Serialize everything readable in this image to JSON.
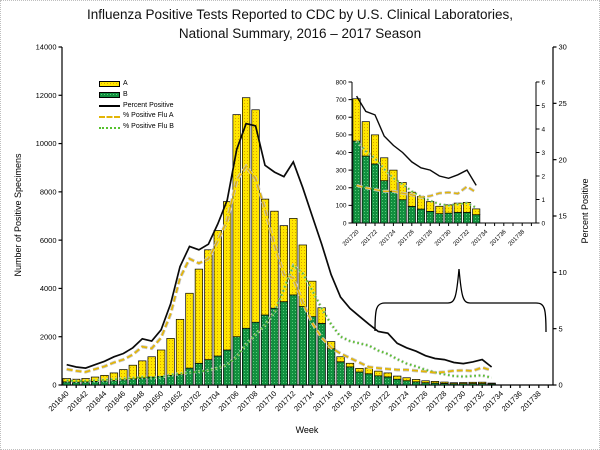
{
  "title": {
    "line1": "Influenza Positive Tests Reported to CDC by U.S. Clinical Laboratories,",
    "line2": "National Summary, 2016 – 2017 Season"
  },
  "chart_data": {
    "type": "bar",
    "subtype": "stacked bars with overlaid percent lines, plus zoom inset",
    "title": "Influenza Positive Tests Reported to CDC by U.S. Clinical Laboratories, National Summary, 2016 – 2017 Season",
    "xlabel": "Week",
    "ylabel_left": "Number of Positive Specimens",
    "ylabel_right": "Percent Positive",
    "axes": {
      "left_ticks": [
        0,
        2000,
        4000,
        6000,
        8000,
        10000,
        12000,
        14000
      ],
      "right_ticks": [
        0,
        5,
        10,
        15,
        20,
        25,
        30
      ],
      "x_tick_labels": [
        "201640",
        "201642",
        "201644",
        "201646",
        "201648",
        "201650",
        "201652",
        "201702",
        "201704",
        "201706",
        "201708",
        "201710",
        "201712",
        "201714",
        "201716",
        "201718",
        "201720",
        "201722",
        "201724",
        "201726",
        "201728",
        "201730",
        "201732",
        "201734",
        "201736",
        "201738"
      ],
      "x_axis_weeks_total": 52,
      "left_range": [
        0,
        14000
      ],
      "right_range": [
        0,
        30
      ]
    },
    "weeks": [
      "201640",
      "201641",
      "201642",
      "201643",
      "201644",
      "201645",
      "201646",
      "201647",
      "201648",
      "201649",
      "201650",
      "201651",
      "201652",
      "201701",
      "201702",
      "201703",
      "201704",
      "201705",
      "201706",
      "201707",
      "201708",
      "201709",
      "201710",
      "201711",
      "201712",
      "201713",
      "201714",
      "201715",
      "201716",
      "201717",
      "201718",
      "201719",
      "201720",
      "201721",
      "201722",
      "201723",
      "201724",
      "201725",
      "201726",
      "201727",
      "201728",
      "201729",
      "201730",
      "201731",
      "201732",
      "201733"
    ],
    "series": [
      {
        "name": "A",
        "type": "bar",
        "values": [
          140,
          120,
          140,
          180,
          235,
          315,
          425,
          565,
          705,
          840,
          1090,
          1535,
          2290,
          3100,
          3900,
          4550,
          5200,
          6150,
          9200,
          9550,
          8800,
          4800,
          4020,
          3150,
          3170,
          2550,
          1470,
          650,
          300,
          210,
          150,
          150,
          240,
          195,
          165,
          130,
          122,
          98,
          81,
          71,
          56,
          42,
          47,
          53,
          57,
          33
        ]
      },
      {
        "name": "B",
        "type": "bar",
        "values": [
          130,
          120,
          130,
          150,
          165,
          185,
          215,
          255,
          295,
          330,
          360,
          395,
          430,
          700,
          900,
          1050,
          1200,
          1450,
          2000,
          2350,
          2600,
          2900,
          3180,
          3450,
          3730,
          3250,
          2830,
          2550,
          1500,
          960,
          750,
          540,
          465,
          380,
          335,
          240,
          178,
          132,
          94,
          79,
          66,
          53,
          56,
          60,
          60,
          47
        ]
      },
      {
        "name": "Percent Positive",
        "type": "line",
        "axis": "right",
        "values": [
          1.8,
          1.6,
          1.5,
          1.8,
          2.1,
          2.5,
          2.8,
          3.3,
          4.1,
          3.9,
          4.9,
          7.2,
          10.5,
          12.3,
          12.0,
          12.5,
          14.3,
          16.4,
          20.9,
          23.2,
          23.0,
          19.5,
          18.9,
          18.5,
          19.8,
          17.5,
          15.0,
          12.5,
          9.8,
          7.8,
          6.8,
          6.1,
          5.4,
          4.75,
          4.6,
          3.7,
          3.3,
          3.0,
          2.6,
          2.35,
          2.25,
          2.0,
          1.9,
          2.05,
          2.25,
          1.6
        ]
      },
      {
        "name": "% Positive Flu A",
        "type": "line",
        "axis": "right",
        "values": [
          1.4,
          1.25,
          1.15,
          1.4,
          1.65,
          2.0,
          2.25,
          2.7,
          3.4,
          3.25,
          4.2,
          6.3,
          9.5,
          11.2,
          10.8,
          11.2,
          12.8,
          14.6,
          18.2,
          19.4,
          18.3,
          15.6,
          12.4,
          9.8,
          9.5,
          7.3,
          5.5,
          4.2,
          3.3,
          2.8,
          2.4,
          2.0,
          1.6,
          1.5,
          1.42,
          1.35,
          1.35,
          1.27,
          1.2,
          1.1,
          1.15,
          1.27,
          1.3,
          1.25,
          1.55,
          1.3
        ]
      },
      {
        "name": "% Positive Flu B",
        "type": "line",
        "axis": "right",
        "values": [
          0.4,
          0.35,
          0.35,
          0.4,
          0.45,
          0.5,
          0.55,
          0.6,
          0.7,
          0.65,
          0.7,
          0.9,
          1.0,
          1.1,
          1.2,
          1.3,
          1.5,
          1.8,
          2.5,
          3.6,
          4.5,
          5.3,
          6.5,
          8.5,
          10.6,
          9.9,
          8.4,
          6.8,
          5.4,
          4.3,
          3.9,
          3.7,
          3.5,
          3.05,
          2.75,
          2.3,
          1.9,
          1.65,
          1.35,
          1.12,
          0.95,
          0.8,
          0.75,
          0.8,
          0.85,
          0.65
        ]
      }
    ],
    "inset": {
      "description": "zoomed view of weeks 201720 onward, linked to main chart by a brace",
      "week_start_index": 32,
      "left_ticks": [
        0,
        100,
        200,
        300,
        400,
        500,
        600,
        700,
        800
      ],
      "right_ticks": [
        0,
        1,
        2,
        3,
        4,
        5,
        6
      ],
      "x_tick_labels": [
        "201720",
        "201722",
        "201724",
        "201726",
        "201728",
        "201730",
        "201732",
        "201734",
        "201736",
        "201738"
      ],
      "x_axis_weeks_total": 20,
      "left_range": [
        0,
        800
      ],
      "right_range": [
        0,
        6
      ]
    },
    "legend": {
      "items": [
        {
          "label": "A",
          "swatch": "bar-yellow"
        },
        {
          "label": "B",
          "swatch": "bar-green"
        },
        {
          "label": "Percent Positive",
          "swatch": "line-solid-black"
        },
        {
          "label": "% Positive Flu A",
          "swatch": "line-dashed-yellow"
        },
        {
          "label": "% Positive Flu B",
          "swatch": "line-dotted-green"
        }
      ]
    },
    "colors": {
      "flu_a_bar": "#FFE600",
      "flu_a_bar_dots": "#D9A300",
      "flu_b_bar": "#12903F",
      "flu_b_bar_dots": "#58C97B",
      "percent_positive_line": "#0a0a0a",
      "pct_a_line": "#E3B505",
      "pct_b_line": "#56C22D",
      "line_shadow": "#c6c6c6",
      "bar_outline": "#000000"
    },
    "grid": false,
    "legend_position": "upper-left inside plot"
  }
}
